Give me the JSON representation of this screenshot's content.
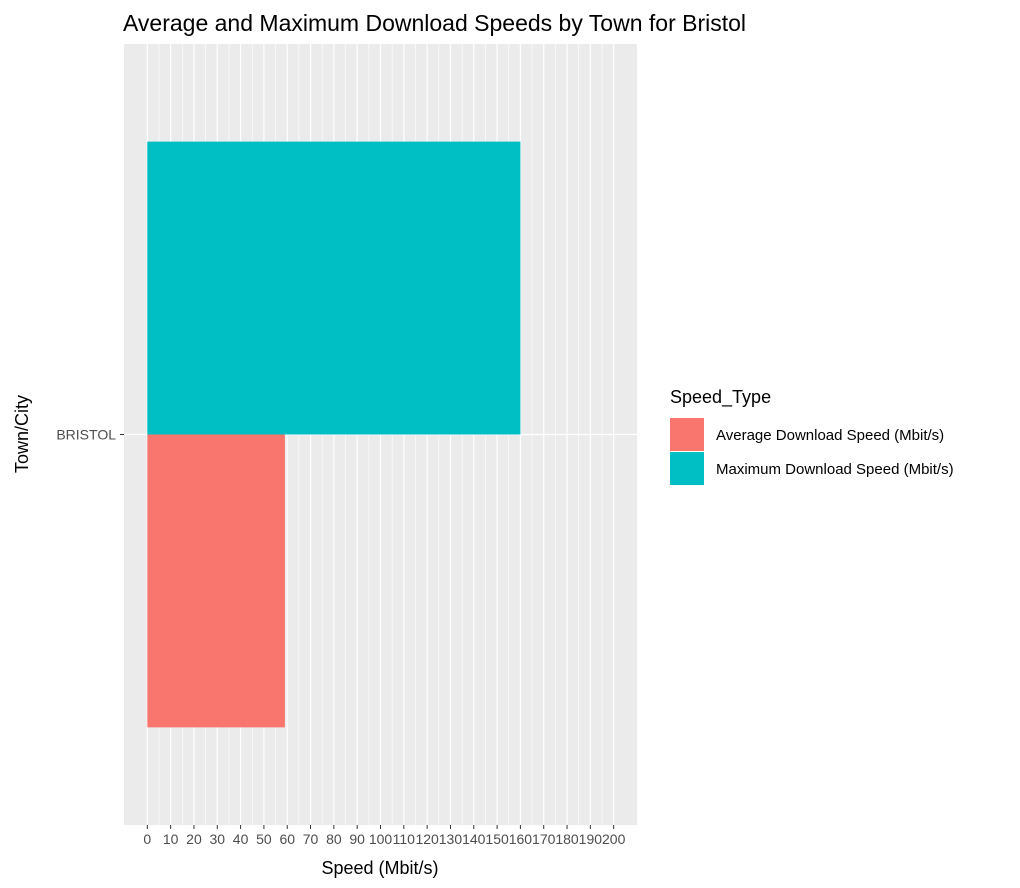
{
  "chart_data": {
    "type": "bar",
    "orientation": "horizontal",
    "position": "dodge",
    "title": "Average and Maximum Download Speeds by Town for Bristol",
    "xlabel": "Speed (Mbit/s)",
    "ylabel": "Town/City",
    "categories": [
      "BRISTOL"
    ],
    "series": [
      {
        "name": "Average Download Speed (Mbit/s)",
        "color": "#F8766D",
        "values": [
          59
        ]
      },
      {
        "name": "Maximum Download Speed (Mbit/s)",
        "color": "#00BFC4",
        "values": [
          160
        ]
      }
    ],
    "xlim": [
      -10,
      210
    ],
    "xticks": [
      0,
      10,
      20,
      30,
      40,
      50,
      60,
      70,
      80,
      90,
      100,
      110,
      120,
      130,
      140,
      150,
      160,
      170,
      180,
      190,
      200
    ],
    "grid": true,
    "legend": {
      "title": "Speed_Type",
      "position": "right"
    }
  }
}
